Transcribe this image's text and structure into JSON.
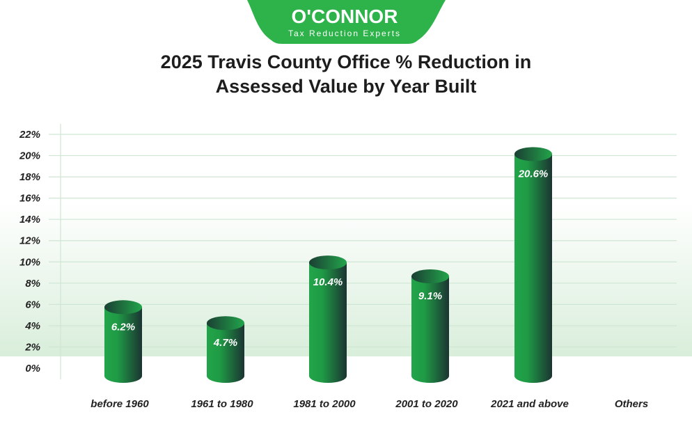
{
  "brand": {
    "name": "O'CONNOR",
    "tagline": "Tax Reduction Experts",
    "color": "#2db34a"
  },
  "chart_data": {
    "type": "bar",
    "title_line1": "2025 Travis County Office % Reduction in",
    "title_line2": "Assessed Value by Year Built",
    "categories": [
      "before 1960",
      "1961 to 1980",
      "1981 to 2000",
      "2001 to 2020",
      "2021 and above",
      "Others"
    ],
    "values": [
      6.2,
      4.7,
      10.4,
      9.1,
      20.6,
      null
    ],
    "data_labels": [
      "6.2%",
      "4.7%",
      "10.4%",
      "9.1%",
      "20.6%",
      ""
    ],
    "ylim": [
      0,
      22
    ],
    "yticks": [
      "0%",
      "2%",
      "4%",
      "6%",
      "8%",
      "10%",
      "12%",
      "14%",
      "16%",
      "18%",
      "20%",
      "22%"
    ],
    "grid": true,
    "bar_style": "3d cylinder",
    "bar_color": "#22a54a"
  }
}
